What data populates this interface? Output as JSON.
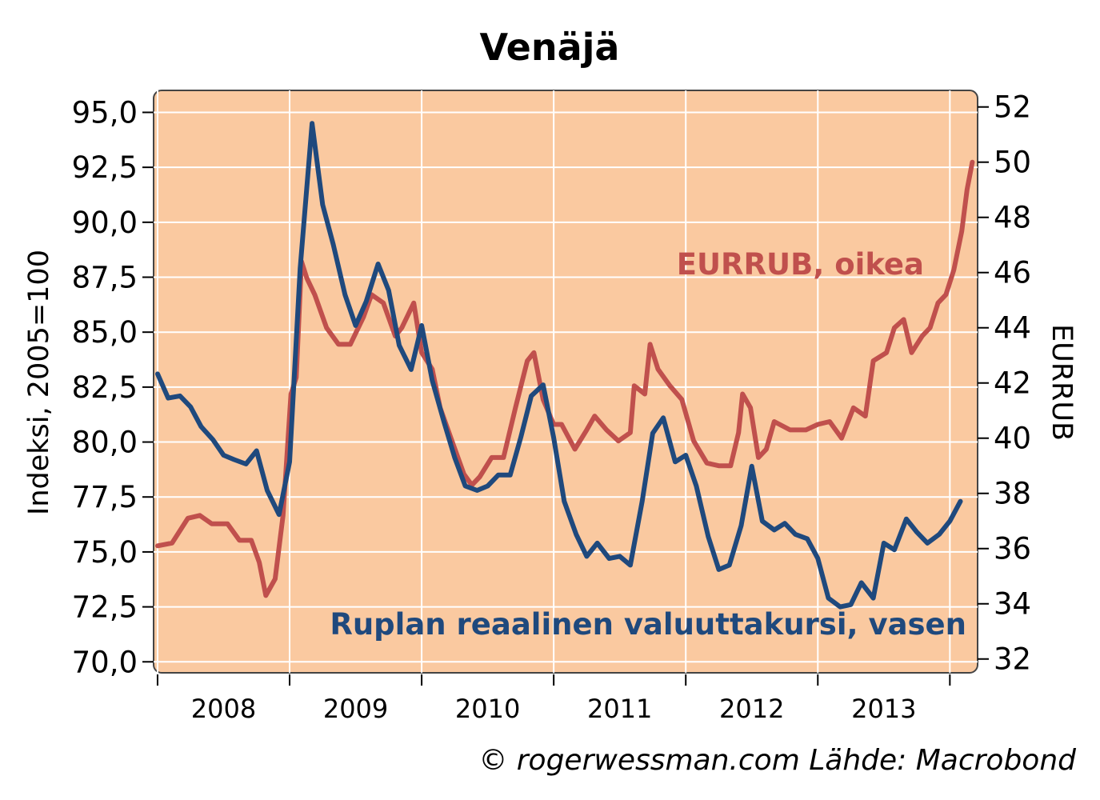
{
  "chart_data": {
    "type": "line",
    "title": "Venäjä",
    "ylabel_left": "Indeksi, 2005=100",
    "ylabel_right": "EURRUB",
    "ylim_left": [
      69.5,
      96.0
    ],
    "ylim_right": [
      31.5,
      52.6
    ],
    "yticks_left": [
      "95,0",
      "92,5",
      "90,0",
      "87,5",
      "85,0",
      "82,5",
      "80,0",
      "77,5",
      "75,0",
      "72,5",
      "70,0"
    ],
    "yticks_right": [
      "52",
      "50",
      "48",
      "46",
      "44",
      "42",
      "40",
      "38",
      "36",
      "34",
      "32"
    ],
    "xlim": [
      2007.97,
      2014.21
    ],
    "xticks": [
      "2008",
      "2009",
      "2010",
      "2011",
      "2012",
      "2013"
    ],
    "grid": true,
    "background_color": "#fac9a0",
    "credit": "© rogerwessman.com Lähde: Macrobond",
    "series": [
      {
        "name": "Ruplan reaalinen valuuttakursi, vasen",
        "axis": "left",
        "color": "#1f497d",
        "x": [
          2008.0,
          2008.08,
          2008.17,
          2008.25,
          2008.33,
          2008.42,
          2008.5,
          2008.58,
          2008.67,
          2008.75,
          2008.83,
          2008.92,
          2009.0,
          2009.08,
          2009.17,
          2009.25,
          2009.33,
          2009.42,
          2009.5,
          2009.58,
          2009.67,
          2009.75,
          2009.83,
          2009.92,
          2010.0,
          2010.08,
          2010.17,
          2010.25,
          2010.33,
          2010.42,
          2010.5,
          2010.58,
          2010.67,
          2010.75,
          2010.83,
          2010.92,
          2011.0,
          2011.08,
          2011.17,
          2011.25,
          2011.33,
          2011.42,
          2011.5,
          2011.58,
          2011.67,
          2011.75,
          2011.83,
          2011.92,
          2012.0,
          2012.08,
          2012.17,
          2012.25,
          2012.33,
          2012.42,
          2012.5,
          2012.58,
          2012.67,
          2012.75,
          2012.83,
          2012.92,
          2013.0,
          2013.08,
          2013.17,
          2013.25,
          2013.33,
          2013.42,
          2013.5,
          2013.58,
          2013.67,
          2013.75,
          2013.83,
          2013.92,
          2014.0,
          2014.08
        ],
        "values": [
          83.1,
          82.0,
          82.1,
          81.6,
          80.7,
          80.1,
          79.4,
          79.2,
          79.0,
          79.6,
          77.8,
          76.7,
          79.1,
          87.9,
          94.5,
          90.8,
          89.0,
          86.7,
          85.3,
          86.4,
          88.1,
          86.9,
          84.4,
          83.3,
          85.3,
          82.8,
          80.9,
          79.3,
          78.0,
          77.8,
          78.0,
          78.5,
          78.5,
          80.2,
          82.1,
          82.6,
          80.2,
          77.3,
          75.8,
          74.8,
          75.4,
          74.7,
          74.8,
          74.4,
          77.3,
          80.4,
          81.1,
          79.1,
          79.4,
          78.0,
          75.7,
          74.2,
          74.4,
          76.2,
          78.9,
          76.4,
          76.0,
          76.3,
          75.8,
          75.6,
          74.7,
          72.9,
          72.5,
          72.6,
          73.6,
          72.9,
          75.4,
          75.1,
          76.5,
          75.9,
          75.4,
          75.8,
          76.4,
          77.3
        ]
      },
      {
        "name": "EURRUB, oikea",
        "axis": "right",
        "color": "#c0504d",
        "x": [
          2008.0,
          2008.11,
          2008.23,
          2008.32,
          2008.41,
          2008.53,
          2008.62,
          2008.71,
          2008.77,
          2008.82,
          2008.89,
          2008.95,
          2009.01,
          2009.05,
          2009.09,
          2009.13,
          2009.19,
          2009.28,
          2009.37,
          2009.46,
          2009.56,
          2009.62,
          2009.71,
          2009.8,
          2009.85,
          2009.94,
          2010.0,
          2010.08,
          2010.14,
          2010.23,
          2010.32,
          2010.38,
          2010.44,
          2010.53,
          2010.62,
          2010.71,
          2010.8,
          2010.85,
          2010.92,
          2011.0,
          2011.06,
          2011.16,
          2011.25,
          2011.31,
          2011.4,
          2011.49,
          2011.58,
          2011.61,
          2011.69,
          2011.73,
          2011.79,
          2011.88,
          2011.97,
          2012.06,
          2012.16,
          2012.25,
          2012.34,
          2012.4,
          2012.43,
          2012.49,
          2012.55,
          2012.61,
          2012.67,
          2012.79,
          2012.91,
          2013.0,
          2013.09,
          2013.18,
          2013.27,
          2013.36,
          2013.42,
          2013.52,
          2013.58,
          2013.65,
          2013.71,
          2013.79,
          2013.85,
          2013.91,
          2013.97,
          2014.03,
          2014.09,
          2014.13,
          2014.17
        ],
        "values": [
          36.1,
          36.2,
          37.1,
          37.2,
          36.9,
          36.9,
          36.3,
          36.3,
          35.5,
          34.3,
          34.9,
          37.2,
          41.6,
          42.2,
          46.4,
          45.8,
          45.2,
          44.0,
          43.4,
          43.4,
          44.4,
          45.2,
          44.9,
          43.7,
          44.0,
          44.9,
          43.1,
          42.5,
          41.1,
          39.9,
          38.7,
          38.3,
          38.6,
          39.3,
          39.3,
          41.1,
          42.8,
          43.1,
          41.4,
          40.5,
          40.5,
          39.6,
          40.3,
          40.8,
          40.3,
          39.9,
          40.2,
          41.9,
          41.6,
          43.4,
          42.5,
          41.9,
          41.4,
          39.9,
          39.1,
          39.0,
          39.0,
          40.2,
          41.6,
          41.1,
          39.3,
          39.6,
          40.6,
          40.3,
          40.3,
          40.5,
          40.6,
          40.0,
          41.1,
          40.8,
          42.8,
          43.1,
          44.0,
          44.3,
          43.1,
          43.7,
          44.0,
          44.9,
          45.2,
          46.1,
          47.5,
          49.0,
          50.0
        ]
      }
    ],
    "annotations": [
      {
        "text": "EURRUB, oikea",
        "series": "EURRUB, oikea"
      },
      {
        "text": "Ruplan reaalinen valuuttakursi, vasen",
        "series": "Ruplan reaalinen valuuttakursi, vasen"
      }
    ]
  }
}
